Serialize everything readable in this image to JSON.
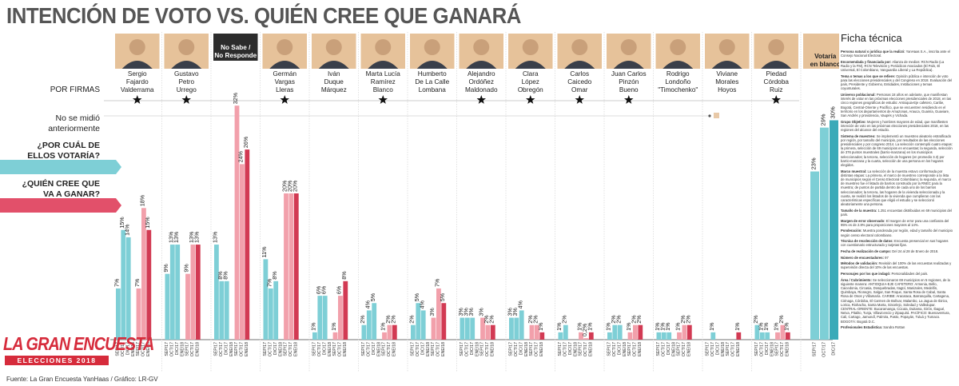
{
  "page": {
    "title": "INTENCIÓN DE VOTO VS. QUIÉN CREE QUE GANARÁ",
    "source": "Fuente: La Gran Encuesta YanHaas / Gráfico: LR-GV",
    "logo": {
      "brand": "LA GRAN ENCUESTA",
      "subtitle": "ELECCIONES 2018"
    }
  },
  "ficha": {
    "title": "Ficha técnica",
    "paragraphs": [
      "Persona natural o jurídica que la realizó: YanHaas S.A., inscrita ante el Consejo Nacional Electoral.",
      "Encomendada y financiada por: Alianza de medios: RCN Radio (La Radio y la FM), RCN Televisión y Periódicos Asociados (El País, El Universal, El Colombiano, Vanguardia Liberal y La República).",
      "Tema o temas a los que se refiere: Opinión pública e intención de voto para las elecciones presidenciales y del Congreso en 2018. Evaluación del país, Presidente y Gobierno, Entidades, Instituciones y temas coyunturales.",
      "Universo poblacional: Personas 18 años en adelante, que manifiestan interés de votar en las próximas elecciones presidenciales de 2018, en las cinco regiones geográficas de estudio: Antioquia-Eje cafetero, Caribe, Bogotá, Central-Oriente y Pacífico, que se encuentren residiendo en el territorio en los departamentos de Amazonas, Arauca, Guainía, Guaviare, San Andrés y providencia, Vaupés y Vichada.",
      "Grupo Objetivo: Mujeres y hombres mayores de edad, que manifiesten intención de voto en las próximas elecciones presidenciales 2018, en las regiones del alcance del estudio.",
      "Sistema de muestreo: Se implementó un muestreo aleatorio estratificado por región, por tamaño del municipio, por resultados de las elecciones presidenciales y por congreso 2014. La selección contempló cuatro etapas: la primera, selección de 69 municipios en encuestas; la segunda, selección de 376 puntos muestrales (barrio-manzana) en los municipios seleccionados; la tercera, selección de hogares (en promedio 3.3) por barrio-manzana y la cuarta, selección de una persona en los hogares elegidos.",
      "Marco muestral: La selección de la muestra estuvo conformada por distintas etapas: La primera, el marco de muestreo corresponde a la lista de municipios según el Censo Electoral Colombiano; la segunda, el marco de muestreo fue el listado de barrios construido por la RNEC para la muestra; de puntos de partida dentro de cada uno de los barrios seleccionados; la tercera, las hogares de la vivienda seleccionada y la cuarta, se realizó los listados de la vivienda que cumplieran con las características específicas que eligió el estudio y se seleccionó aleatoriamente una persona.",
      "Tamaño de la muestra: 1.251 encuestas distribuidas en 69 municipios del país.",
      "Margen de error observado: El margen de error para una confianza del 95% es de 2.8% para proporciones mayores al 14%.",
      "Ponderación: Muestra ponderada por región, edad y tamaño del municipio según censo electoral colombiano.",
      "Técnica de recolección de datos: Encuesta presencial en sus hogares con cuestionario estructurado y tarjetas fijas.",
      "Fecha de realización de campo: Del 24 al 28 de Enero de 2018.",
      "Número de encuestadores: 97",
      "Métodos de validación: Revisión del 100% de las encuestas realizadas y supervisión directa del 10% de las encuestas.",
      "Personajes por los que indagó: Personalidades del país.",
      "Área / Cubrimiento: Se seleccionaron 69 municipios en 5 regiones, de la siguiente manera: ANTIOQUIA-EJE CAFETERO: Armenia, Bello, Caicedonia, Circasia, Dosquebradas, Itagüí, Manizales, Medellín, Quimbaya, Rionegro, Salgar, San Roque, Santa Rosa de Cabal, Santa Rosa de Osos y Villamaría. CARIBE: Aracataca, Barranquilla, Cartagena, Ciénaga, Córdoba, El Carmen de Bolívar, Malambo, La Jagua de Ibirico, Lorica, Riohacha, Santa Marta, Sincelejo, Soledad y Valledupar. CENTRAL-ORIENTE: Bucaramanga, Cúcuta, Duitama, Girón, Ibagué, Neiva, Pitalito, Tunja, Villavicencio y Zipaquirá. PACÍFICO: Buenaventura, Cali, Cartago, Jamundí, Palmira, Pasto, Popayán, Tuluá y Tumaco. BOGOTÁ: Bogotá D.C.",
      "Profesionales Estadística: Sandra Rottan"
    ]
  },
  "chart_data": {
    "type": "bar",
    "title": "INTENCIÓN DE VOTO VS. QUIÉN CREE QUE GANARÁ",
    "ylim": [
      0,
      34
    ],
    "period_labels": [
      "SEP/17",
      "OCT/17",
      "DIC/17",
      "ENE/18"
    ],
    "series": [
      {
        "name": "¿POR CUÁL DE ELLOS VOTARÍA?",
        "color": "#7ecfd6"
      },
      {
        "name": "¿QUIÉN CREE QUE VA A GANAR?",
        "color": "#f2a0ab"
      }
    ],
    "row_labels": {
      "firmas": "POR FIRMAS",
      "no_medido": [
        "No se midió",
        "anteriormente"
      ],
      "votaria": [
        "¿POR CUÁL DE",
        "ELLOS VOTARÍA?"
      ],
      "ganara": [
        "¿QUIÉN CREE QUE",
        "VA A GANAR?"
      ]
    },
    "groups": [
      {
        "name": [
          "Sergio",
          "Fajardo",
          "Valderrama"
        ],
        "firma": true,
        "votaria": [
          {
            "p": "SEP/17",
            "v": 7
          },
          {
            "p": "OCT/17",
            "v": 15
          },
          {
            "p": "DIC/17",
            "v": 14
          },
          {
            "p": "ENE/18",
            "v": null
          }
        ],
        "ganara": [
          {
            "p": "SEP/17",
            "v": 7
          },
          {
            "p": "OCT/17",
            "v": 18
          },
          {
            "p": "ENE/18",
            "v": 15
          }
        ]
      },
      {
        "name": [
          "Gustavo",
          "Petro",
          "Urrego"
        ],
        "firma": true,
        "votaria": [
          {
            "p": "SEP/17",
            "v": 9
          },
          {
            "p": "OCT/17",
            "v": 13
          },
          {
            "p": "DIC/17",
            "v": 13
          },
          {
            "p": "ENE/18",
            "v": null
          }
        ],
        "ganara": [
          {
            "p": "SEP/17",
            "v": 9
          },
          {
            "p": "OCT/17",
            "v": 13
          },
          {
            "p": "ENE/18",
            "v": 13
          }
        ]
      },
      {
        "name": [
          "No Sabe /",
          "No Responde"
        ],
        "firma": false,
        "dark_header": true,
        "votaria": [
          {
            "p": "SEP/17",
            "v": 13
          },
          {
            "p": "OCT/17",
            "v": 8
          },
          {
            "p": "DIC/17",
            "v": 8
          },
          {
            "p": "ENE/18",
            "v": null
          }
        ],
        "ganara": [
          {
            "p": "SEP/17",
            "v": 32
          },
          {
            "p": "OCT/17",
            "v": 24
          },
          {
            "p": "ENE/18",
            "v": 26
          }
        ]
      },
      {
        "name": [
          "Germán",
          "Vargas",
          "Lleras"
        ],
        "firma": true,
        "votaria": [
          {
            "p": "SEP/17",
            "v": 11
          },
          {
            "p": "OCT/17",
            "v": 7
          },
          {
            "p": "DIC/17",
            "v": 8
          },
          {
            "p": "ENE/18",
            "v": null
          }
        ],
        "ganara": [
          {
            "p": "SEP/17",
            "v": 20
          },
          {
            "p": "OCT/17",
            "v": 20
          },
          {
            "p": "ENE/18",
            "v": 20
          }
        ]
      },
      {
        "name": [
          "Iván",
          "Duque",
          "Márquez"
        ],
        "firma": false,
        "votaria": [
          {
            "p": "SEP/17",
            "v": 1
          },
          {
            "p": "OCT/17",
            "v": 6
          },
          {
            "p": "DIC/17",
            "v": 6
          },
          {
            "p": "ENE/18",
            "v": null
          }
        ],
        "ganara": [
          {
            "p": "SEP/17",
            "v": 1
          },
          {
            "p": "OCT/17",
            "v": 6
          },
          {
            "p": "ENE/18",
            "v": 8
          }
        ]
      },
      {
        "name": [
          "Marta Lucía",
          "Ramírez",
          "Blanco"
        ],
        "firma": true,
        "votaria": [
          {
            "p": "SEP/17",
            "v": 2
          },
          {
            "p": "OCT/17",
            "v": 4
          },
          {
            "p": "DIC/17",
            "v": 5
          },
          {
            "p": "ENE/18",
            "v": null
          }
        ],
        "ganara": [
          {
            "p": "SEP/17",
            "v": 1
          },
          {
            "p": "OCT/17",
            "v": 2
          },
          {
            "p": "ENE/18",
            "v": 2
          }
        ]
      },
      {
        "name": [
          "Humberto",
          "De La Calle",
          "Lombana"
        ],
        "firma": false,
        "votaria": [
          {
            "p": "SEP/17",
            "v": 2
          },
          {
            "p": "OCT/17",
            "v": 5
          },
          {
            "p": "DIC/17",
            "v": 4
          },
          {
            "p": "ENE/18",
            "v": null
          }
        ],
        "ganara": [
          {
            "p": "SEP/17",
            "v": 3
          },
          {
            "p": "OCT/17",
            "v": 7
          },
          {
            "p": "ENE/18",
            "v": 5
          }
        ]
      },
      {
        "name": [
          "Alejandro",
          "Ordóñez",
          "Maldonado"
        ],
        "firma": true,
        "votaria": [
          {
            "p": "SEP/17",
            "v": 3
          },
          {
            "p": "OCT/17",
            "v": 3
          },
          {
            "p": "DIC/17",
            "v": 3
          },
          {
            "p": "ENE/18",
            "v": null
          }
        ],
        "ganara": [
          {
            "p": "SEP/17",
            "v": 3
          },
          {
            "p": "OCT/17",
            "v": 2
          },
          {
            "p": "ENE/18",
            "v": 2
          }
        ]
      },
      {
        "name": [
          "Clara",
          "López",
          "Obregón"
        ],
        "firma": true,
        "votaria": [
          {
            "p": "SEP/17",
            "v": 3
          },
          {
            "p": "OCT/17",
            "v": 3
          },
          {
            "p": "DIC/17",
            "v": 4
          },
          {
            "p": "ENE/18",
            "v": null
          }
        ],
        "ganara": [
          {
            "p": "SEP/17",
            "v": 2
          },
          {
            "p": "OCT/17",
            "v": 2
          },
          {
            "p": "ENE/18",
            "v": 1
          }
        ]
      },
      {
        "name": [
          "Carlos",
          "Caicedo",
          "Omar"
        ],
        "firma": true,
        "votaria": [
          {
            "p": "SEP/17",
            "v": 1
          },
          {
            "p": "OCT/17",
            "v": 2
          },
          {
            "p": "DIC/17",
            "v": null
          },
          {
            "p": "ENE/18",
            "v": null
          }
        ],
        "ganara": [
          {
            "p": "SEP/17",
            "v": 1
          },
          {
            "p": "OCT/17",
            "v": 0.2
          },
          {
            "p": "ENE/18",
            "v": 1
          }
        ]
      },
      {
        "name": [
          "Juan Carlos",
          "Pinzón",
          "Bueno"
        ],
        "firma": true,
        "votaria": [
          {
            "p": "SEP/17",
            "v": 1
          },
          {
            "p": "OCT/17",
            "v": 2
          },
          {
            "p": "DIC/17",
            "v": 2
          },
          {
            "p": "ENE/18",
            "v": null
          }
        ],
        "ganara": [
          {
            "p": "SEP/17",
            "v": 1
          },
          {
            "p": "OCT/17",
            "v": 2
          },
          {
            "p": "ENE/18",
            "v": 2
          }
        ]
      },
      {
        "name": [
          "Rodrigo",
          "Londoño",
          "\"Timochenko\""
        ],
        "firma": false,
        "votaria": [
          {
            "p": "SEP/17",
            "v": 1
          },
          {
            "p": "OCT/17",
            "v": 1
          },
          {
            "p": "DIC/17",
            "v": 1
          },
          {
            "p": "ENE/18",
            "v": null
          }
        ],
        "ganara": [
          {
            "p": "SEP/17",
            "v": 1
          },
          {
            "p": "OCT/17",
            "v": 2
          },
          {
            "p": "ENE/18",
            "v": 2
          }
        ]
      },
      {
        "name": [
          "Viviane",
          "Morales",
          "Hoyos"
        ],
        "firma": false,
        "votaria": [
          {
            "p": "SEP/17",
            "v": null
          },
          {
            "p": "OCT/17",
            "v": 1
          },
          {
            "p": "DIC/17",
            "v": null
          },
          {
            "p": "ENE/18",
            "v": null
          }
        ],
        "ganara": [
          {
            "p": "SEP/17",
            "v": null
          },
          {
            "p": "OCT/17",
            "v": null
          },
          {
            "p": "ENE/18",
            "v": 1
          }
        ]
      },
      {
        "name": [
          "Piedad",
          "Córdoba",
          "Ruiz"
        ],
        "firma": true,
        "votaria": [
          {
            "p": "SEP/17",
            "v": 2
          },
          {
            "p": "OCT/17",
            "v": 1
          },
          {
            "p": "DIC/17",
            "v": 1
          },
          {
            "p": "ENE/18",
            "v": null
          }
        ],
        "ganara": [
          {
            "p": "SEP/17",
            "v": 1
          },
          {
            "p": "OCT/17",
            "v": 2
          },
          {
            "p": "ENE/18",
            "v": 1
          }
        ]
      },
      {
        "name": [
          "Votaría",
          "en blanco"
        ],
        "firma": false,
        "blanco": true,
        "votaria": [
          {
            "p": "SEP/17",
            "v": 23
          },
          {
            "p": "OCT/17",
            "v": 29
          },
          {
            "p": "DIC/17",
            "v": 30
          }
        ],
        "ganara": []
      }
    ]
  }
}
